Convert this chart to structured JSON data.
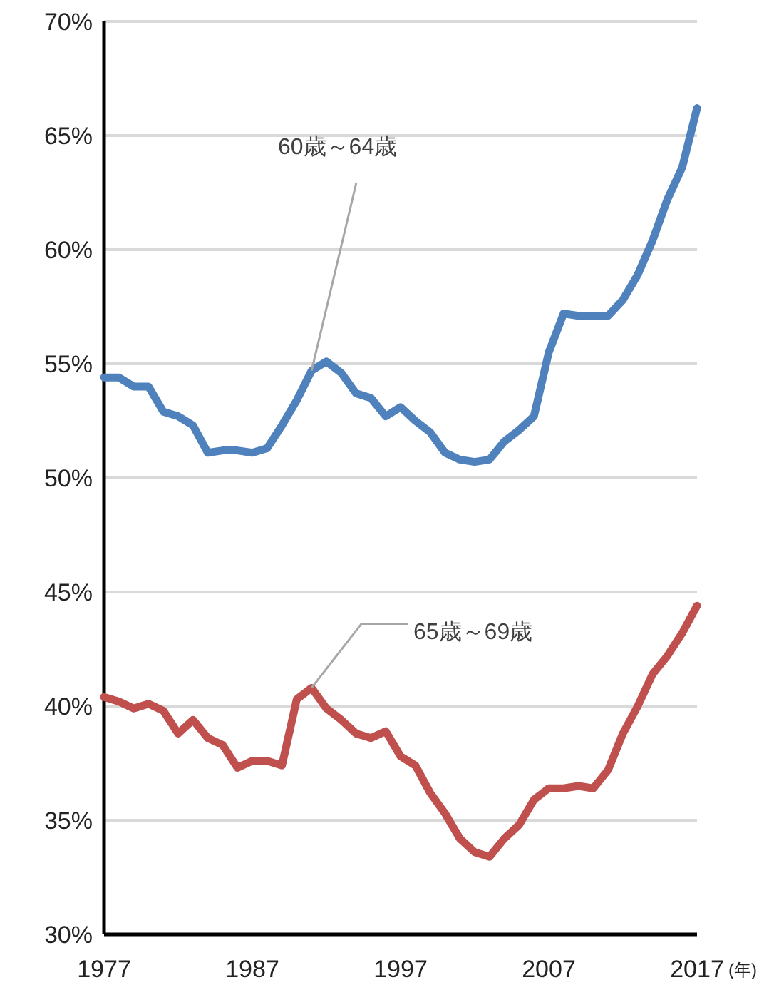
{
  "chart_data": {
    "type": "line",
    "xlabel": "(年)",
    "x": [
      1977,
      1978,
      1979,
      1980,
      1981,
      1982,
      1983,
      1984,
      1985,
      1986,
      1987,
      1988,
      1989,
      1990,
      1991,
      1992,
      1993,
      1994,
      1995,
      1996,
      1997,
      1998,
      1999,
      2000,
      2001,
      2002,
      2003,
      2004,
      2005,
      2006,
      2007,
      2008,
      2009,
      2010,
      2011,
      2012,
      2013,
      2014,
      2015,
      2016,
      2017
    ],
    "series": [
      {
        "color": "#4f81bd",
        "values": [
          54.4,
          54.4,
          54.0,
          54.0,
          52.9,
          52.7,
          52.3,
          51.1,
          51.2,
          51.2,
          51.1,
          51.3,
          52.3,
          53.4,
          54.7,
          55.1,
          54.6,
          53.7,
          53.5,
          52.7,
          53.1,
          52.5,
          52.0,
          51.1,
          50.8,
          50.7,
          50.8,
          51.6,
          52.1,
          52.7,
          55.5,
          57.2,
          57.1,
          57.1,
          57.1,
          57.8,
          58.9,
          60.4,
          62.2,
          63.6,
          66.2
        ]
      },
      {
        "color": "#c0504d",
        "values": [
          40.4,
          40.2,
          39.9,
          40.1,
          39.8,
          38.8,
          39.4,
          38.6,
          38.3,
          37.3,
          37.6,
          37.6,
          37.4,
          40.3,
          40.8,
          39.9,
          39.4,
          38.8,
          38.6,
          38.9,
          37.8,
          37.4,
          36.2,
          35.3,
          34.2,
          33.6,
          33.4,
          34.2,
          34.8,
          35.9,
          36.4,
          36.4,
          36.5,
          36.4,
          37.2,
          38.8,
          40.0,
          41.4,
          42.2,
          43.2,
          44.4
        ]
      }
    ],
    "annotations": [
      {
        "text": "60歳～64歳",
        "x": 1991,
        "y": 54.7
      },
      {
        "text": "65歳～69歳",
        "x": 1991,
        "y": 40.8
      }
    ],
    "xlim": [
      1977,
      2017
    ],
    "xticks": [
      1977,
      1987,
      1997,
      2007,
      2017
    ],
    "ylim": [
      30,
      70
    ],
    "yticks": [
      {
        "value": 30,
        "label": "30%"
      },
      {
        "value": 35,
        "label": "35%"
      },
      {
        "value": 40,
        "label": "40%"
      },
      {
        "value": 45,
        "label": "45%"
      },
      {
        "value": 50,
        "label": "50%"
      },
      {
        "value": 55,
        "label": "55%"
      },
      {
        "value": 60,
        "label": "60%"
      },
      {
        "value": 65,
        "label": "65%"
      },
      {
        "value": 70,
        "label": "70%"
      }
    ],
    "grid": "y",
    "marker": "none",
    "line_style": "solid"
  }
}
